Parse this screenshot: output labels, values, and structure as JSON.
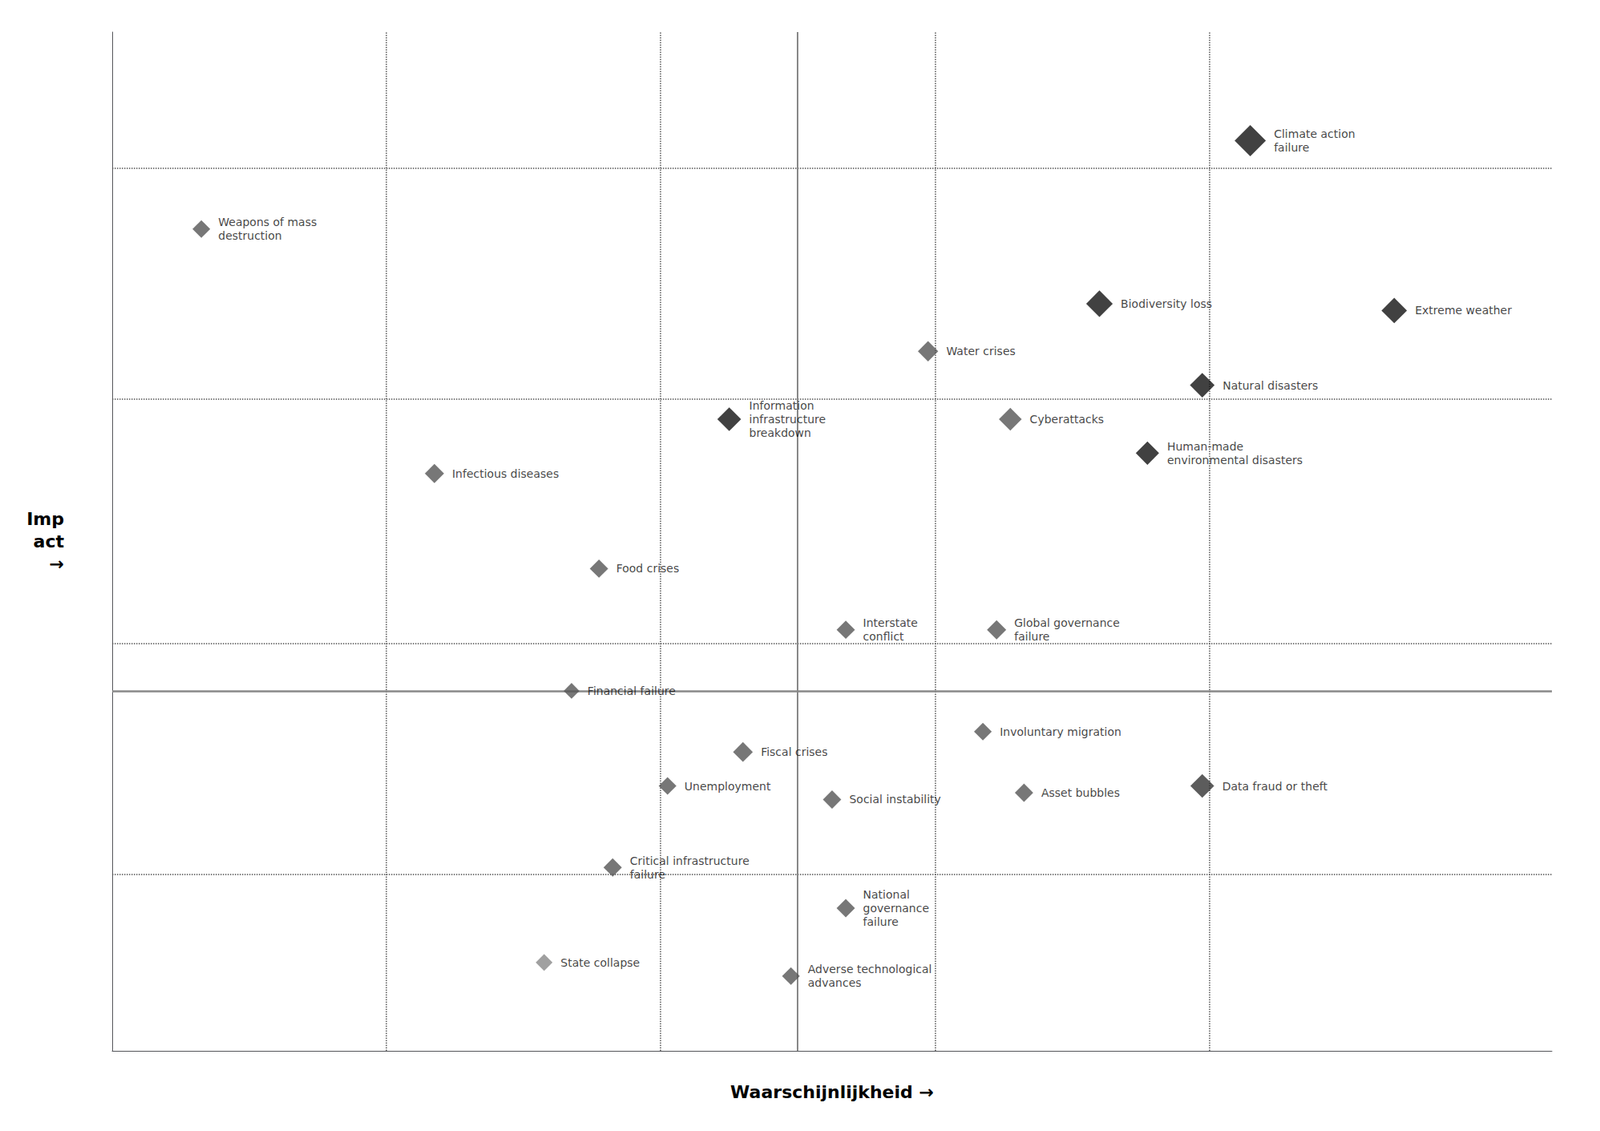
{
  "chart_data": {
    "type": "scatter",
    "marker": "diamond",
    "xlabel": "Waarschijnlijkheid →",
    "ylabel": "Imp\nact\n→",
    "xlim": [
      0,
      10.5
    ],
    "ylim": [
      2.0,
      9.5
    ],
    "tick_labels": false,
    "grid": false,
    "labels": [
      "Climate action\nfailure",
      "Biodiversity loss",
      "Extreme weather",
      "Water crises",
      "Natural disasters",
      "Information\ninfrastructure\nbreakdown",
      "Cyberattacks",
      "Human-made\nenvironmental disasters",
      "Infectious diseases",
      "Weapons of mass\ndestruction",
      "Food crises",
      "Interstate\nconflict",
      "Global governance\nfailure",
      "Financial failure",
      "Fiscal crises",
      "Involuntary migration",
      "Unemployment",
      "Social instability",
      "Asset bubbles",
      "Data fraud or theft",
      "Critical infrastructure\nfailure",
      "National\ngovernance\nfailure",
      "State collapse",
      "Adverse technological\nadvances"
    ],
    "x": [
      8.3,
      7.2,
      9.35,
      5.95,
      7.95,
      4.5,
      6.55,
      7.55,
      2.35,
      0.65,
      3.55,
      5.35,
      6.45,
      3.35,
      4.6,
      6.35,
      4.05,
      5.25,
      6.65,
      7.95,
      3.65,
      5.35,
      3.15,
      4.95
    ],
    "y": [
      8.7,
      7.5,
      7.45,
      7.15,
      6.9,
      6.65,
      6.65,
      6.4,
      6.25,
      8.05,
      5.55,
      5.1,
      5.1,
      4.65,
      4.2,
      4.35,
      3.95,
      3.85,
      3.9,
      3.95,
      3.35,
      3.05,
      2.65,
      2.55
    ],
    "sizes": [
      900,
      650,
      600,
      380,
      560,
      520,
      480,
      500,
      340,
      290,
      310,
      310,
      340,
      230,
      360,
      290,
      290,
      310,
      310,
      520,
      310,
      310,
      260,
      290
    ],
    "colors": [
      "#111111",
      "#111111",
      "#111111",
      "#555555",
      "#111111",
      "#111111",
      "#555555",
      "#111111",
      "#555555",
      "#555555",
      "#555555",
      "#555555",
      "#555555",
      "#555555",
      "#555555",
      "#555555",
      "#555555",
      "#555555",
      "#555555",
      "#333333",
      "#555555",
      "#555555",
      "#888888",
      "#555555"
    ],
    "dashed_lines_x": [
      2.0,
      4.0,
      6.0,
      8.0
    ],
    "dashed_lines_y": [
      3.3,
      5.0,
      6.8,
      8.5
    ],
    "divider_x": 5.0,
    "divider_y": 4.65
  }
}
